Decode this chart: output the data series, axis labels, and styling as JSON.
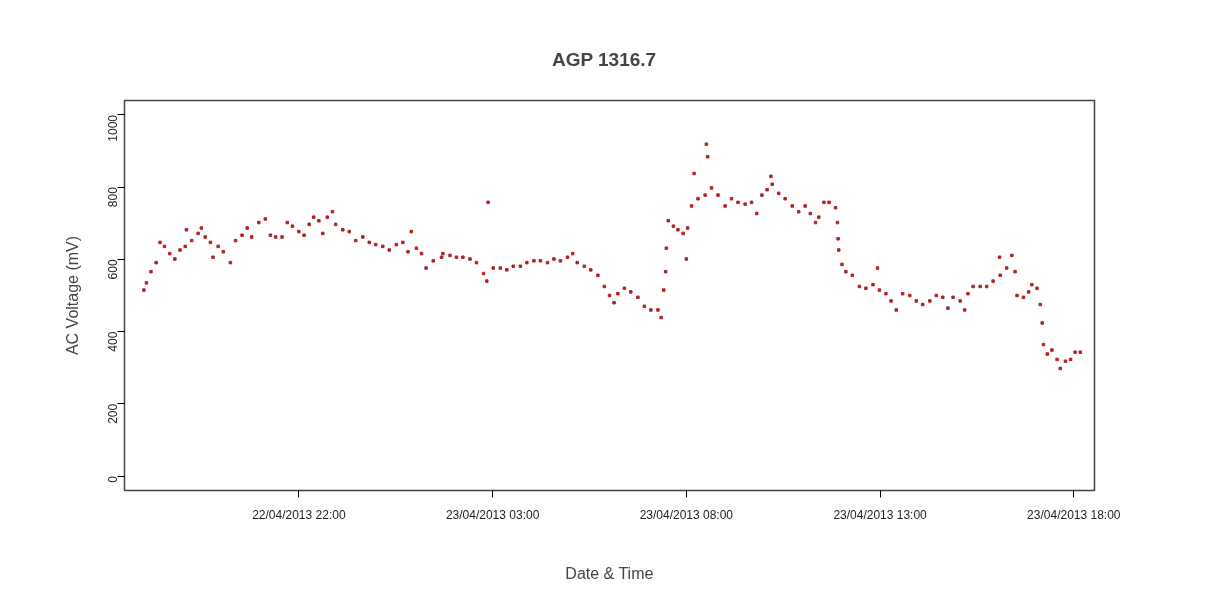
{
  "chart_data": {
    "type": "scatter",
    "title": "AGP   1316.7",
    "xlabel": "Date & Time",
    "ylabel": "AC Voltage (mV)",
    "xlim": [
      "2013-04-22T17:30",
      "2013-04-23T18:32"
    ],
    "ylim": [
      -40,
      1040
    ],
    "xticks": [
      {
        "value": "2013-04-22T22:00",
        "label": "22/04/2013 22:00"
      },
      {
        "value": "2013-04-23T03:00",
        "label": "23/04/2013 03:00"
      },
      {
        "value": "2013-04-23T08:00",
        "label": "23/04/2013 08:00"
      },
      {
        "value": "2013-04-23T13:00",
        "label": "23/04/2013 13:00"
      },
      {
        "value": "2013-04-23T18:00",
        "label": "23/04/2013 18:00"
      }
    ],
    "yticks": [
      0,
      200,
      400,
      600,
      800,
      1000
    ],
    "grid": false,
    "marker": "square",
    "series": [
      {
        "color": "#b22222",
        "x": [
          "2013-04-22T18:00",
          "2013-04-22T18:04",
          "2013-04-22T18:11",
          "2013-04-22T18:19",
          "2013-04-22T18:25",
          "2013-04-22T18:32",
          "2013-04-22T18:40",
          "2013-04-22T18:48",
          "2013-04-22T18:56",
          "2013-04-22T19:04",
          "2013-04-22T19:06",
          "2013-04-22T19:14",
          "2013-04-22T19:24",
          "2013-04-22T19:29",
          "2013-04-22T19:35",
          "2013-04-22T19:43",
          "2013-04-22T19:47",
          "2013-04-22T19:55",
          "2013-04-22T20:03",
          "2013-04-22T20:14",
          "2013-04-22T20:22",
          "2013-04-22T20:32",
          "2013-04-22T20:40",
          "2013-04-22T20:47",
          "2013-04-22T20:58",
          "2013-04-22T21:08",
          "2013-04-22T21:16",
          "2013-04-22T21:24",
          "2013-04-22T21:34",
          "2013-04-22T21:42",
          "2013-04-22T21:50",
          "2013-04-22T22:00",
          "2013-04-22T22:08",
          "2013-04-22T22:16",
          "2013-04-22T22:23",
          "2013-04-22T22:31",
          "2013-04-22T22:37",
          "2013-04-22T22:44",
          "2013-04-22T22:52",
          "2013-04-22T22:57",
          "2013-04-22T23:08",
          "2013-04-22T23:18",
          "2013-04-22T23:28",
          "2013-04-22T23:39",
          "2013-04-22T23:49",
          "2013-04-22T23:59",
          "2013-04-23T00:10",
          "2013-04-23T00:20",
          "2013-04-23T00:31",
          "2013-04-23T00:41",
          "2013-04-23T00:49",
          "2013-04-23T00:54",
          "2013-04-23T01:02",
          "2013-04-23T01:10",
          "2013-04-23T01:17",
          "2013-04-23T01:28",
          "2013-04-23T01:41",
          "2013-04-23T01:43",
          "2013-04-23T01:54",
          "2013-04-23T02:04",
          "2013-04-23T02:14",
          "2013-04-23T02:25",
          "2013-04-23T02:35",
          "2013-04-23T02:46",
          "2013-04-23T02:51",
          "2013-04-23T02:53",
          "2013-04-23T03:01",
          "2013-04-23T03:12",
          "2013-04-23T03:22",
          "2013-04-23T03:32",
          "2013-04-23T03:43",
          "2013-04-23T03:53",
          "2013-04-23T04:04",
          "2013-04-23T04:14",
          "2013-04-23T04:25",
          "2013-04-23T04:35",
          "2013-04-23T04:45",
          "2013-04-23T04:56",
          "2013-04-23T05:04",
          "2013-04-23T05:11",
          "2013-04-23T05:22",
          "2013-04-23T05:32",
          "2013-04-23T05:43",
          "2013-04-23T05:53",
          "2013-04-23T06:01",
          "2013-04-23T06:08",
          "2013-04-23T06:14",
          "2013-04-23T06:24",
          "2013-04-23T06:34",
          "2013-04-23T06:45",
          "2013-04-23T06:55",
          "2013-04-23T07:05",
          "2013-04-23T07:16",
          "2013-04-23T07:21",
          "2013-04-23T07:25",
          "2013-04-23T07:28",
          "2013-04-23T07:29",
          "2013-04-23T07:32",
          "2013-04-23T07:40",
          "2013-04-23T07:47",
          "2013-04-23T07:55",
          "2013-04-23T08:00",
          "2013-04-23T08:02",
          "2013-04-23T08:08",
          "2013-04-23T08:12",
          "2013-04-23T08:18",
          "2013-04-23T08:29",
          "2013-04-23T08:31",
          "2013-04-23T08:33",
          "2013-04-23T08:39",
          "2013-04-23T08:49",
          "2013-04-23T09:00",
          "2013-04-23T09:10",
          "2013-04-23T09:20",
          "2013-04-23T09:31",
          "2013-04-23T09:41",
          "2013-04-23T09:49",
          "2013-04-23T09:57",
          "2013-04-23T10:05",
          "2013-04-23T10:11",
          "2013-04-23T10:13",
          "2013-04-23T10:23",
          "2013-04-23T10:33",
          "2013-04-23T10:44",
          "2013-04-23T10:54",
          "2013-04-23T11:04",
          "2013-04-23T11:12",
          "2013-04-23T11:20",
          "2013-04-23T11:25",
          "2013-04-23T11:33",
          "2013-04-23T11:41",
          "2013-04-23T11:51",
          "2013-04-23T11:54",
          "2013-04-23T11:55",
          "2013-04-23T11:56",
          "2013-04-23T12:01",
          "2013-04-23T12:07",
          "2013-04-23T12:17",
          "2013-04-23T12:28",
          "2013-04-23T12:38",
          "2013-04-23T12:49",
          "2013-04-23T12:56",
          "2013-04-23T12:59",
          "2013-04-23T13:09",
          "2013-04-23T13:17",
          "2013-04-23T13:25",
          "2013-04-23T13:35",
          "2013-04-23T13:46",
          "2013-04-23T13:56",
          "2013-04-23T14:06",
          "2013-04-23T14:17",
          "2013-04-23T14:27",
          "2013-04-23T14:37",
          "2013-04-23T14:45",
          "2013-04-23T14:53",
          "2013-04-23T15:04",
          "2013-04-23T15:11",
          "2013-04-23T15:16",
          "2013-04-23T15:24",
          "2013-04-23T15:35",
          "2013-04-23T15:45",
          "2013-04-23T15:55",
          "2013-04-23T16:05",
          "2013-04-23T16:06",
          "2013-04-23T16:16",
          "2013-04-23T16:24",
          "2013-04-23T16:29",
          "2013-04-23T16:32",
          "2013-04-23T16:42",
          "2013-04-23T16:50",
          "2013-04-23T16:55",
          "2013-04-23T17:03",
          "2013-04-23T17:08",
          "2013-04-23T17:11",
          "2013-04-23T17:13",
          "2013-04-23T17:19",
          "2013-04-23T17:26",
          "2013-04-23T17:34",
          "2013-04-23T17:39",
          "2013-04-23T17:47",
          "2013-04-23T17:55",
          "2013-04-23T18:02",
          "2013-04-23T18:10"
        ],
        "values": [
          515,
          535,
          566,
          591,
          647,
          636,
          616,
          601,
          626,
          636,
          682,
          652,
          672,
          687,
          662,
          647,
          606,
          636,
          621,
          591,
          652,
          667,
          687,
          662,
          702,
          712,
          667,
          662,
          662,
          702,
          692,
          677,
          667,
          697,
          717,
          707,
          672,
          717,
          732,
          697,
          682,
          677,
          652,
          662,
          647,
          641,
          636,
          626,
          641,
          647,
          621,
          677,
          631,
          616,
          576,
          596,
          606,
          616,
          611,
          606,
          606,
          601,
          591,
          561,
          540,
          758,
          576,
          576,
          571,
          581,
          581,
          591,
          596,
          596,
          591,
          601,
          596,
          606,
          616,
          591,
          581,
          571,
          556,
          525,
          500,
          480,
          505,
          520,
          510,
          495,
          470,
          460,
          460,
          439,
          515,
          566,
          631,
          707,
          692,
          682,
          672,
          601,
          687,
          748,
          838,
          768,
          778,
          919,
          884,
          798,
          778,
          748,
          768,
          758,
          753,
          758,
          727,
          778,
          793,
          830,
          808,
          783,
          768,
          748,
          732,
          748,
          727,
          702,
          717,
          758,
          758,
          743,
          702,
          657,
          626,
          586,
          566,
          556,
          525,
          520,
          530,
          576,
          515,
          505,
          485,
          460,
          505,
          500,
          485,
          475,
          485,
          500,
          495,
          465,
          495,
          485,
          460,
          505,
          525,
          525,
          525,
          540,
          606,
          556,
          576,
          611,
          566,
          500,
          495,
          510,
          530,
          520,
          475,
          424,
          364,
          338,
          349,
          323,
          298,
          318,
          323,
          343,
          343
        ]
      }
    ]
  }
}
